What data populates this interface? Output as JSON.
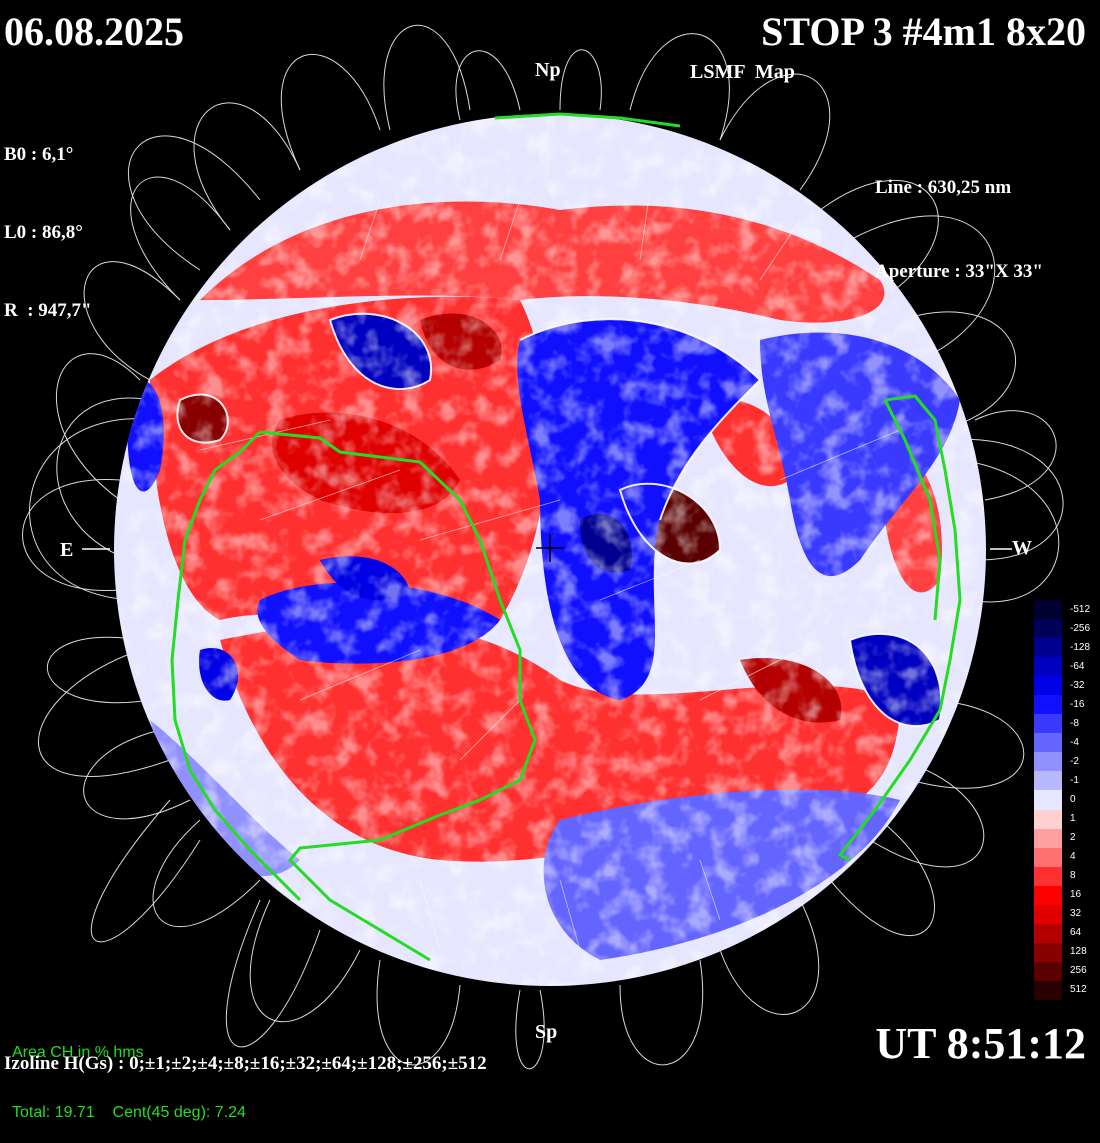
{
  "header": {
    "date": "06.08.2025",
    "title": "STOP 3 #4m1 8x20",
    "subtitle": "LSMF  Map"
  },
  "params": {
    "b0": "B0 : 6,1°",
    "l0": "L0 : 86,8°",
    "r": "R  : 947,7\""
  },
  "instrument": {
    "line": "Line : 630,25 nm",
    "aperture": "Aperture : 33\"X 33\""
  },
  "directions": {
    "north": "Np",
    "south": "Sp",
    "east": "E",
    "west": "W"
  },
  "coronal_hole": {
    "heading": "Area CH in % hms",
    "totals": "Total: 19.71    Cent(45 deg): 7.24"
  },
  "time": "UT 8:51:12",
  "izoline": "Izoline H(Gs) : 0;±1;±2;±4;±8;±16;±32;±64;±128;±256;±512",
  "legend": {
    "labels": [
      "-512",
      "-256",
      "-128",
      "-64",
      "-32",
      "-16",
      "-8",
      "-4",
      "-2",
      "-1",
      "0",
      "1",
      "2",
      "4",
      "8",
      "16",
      "32",
      "64",
      "128",
      "256",
      "512"
    ],
    "colors": [
      "#000030",
      "#00005a",
      "#000090",
      "#0000c0",
      "#0000e6",
      "#1010ff",
      "#3a3aff",
      "#6464ff",
      "#9090ff",
      "#b8b8ff",
      "#e6e6ff",
      "#ffd0d0",
      "#ffa0a0",
      "#ff7070",
      "#ff3030",
      "#ff0000",
      "#e00000",
      "#b40000",
      "#880000",
      "#5a0000",
      "#2a0000"
    ]
  },
  "colors": {
    "background": "#000000",
    "text": "#ffffff",
    "ch_contour": "#22dd22",
    "positive": "#ff0000",
    "negative": "#1010ff",
    "neutral": "#e6e6ff"
  }
}
